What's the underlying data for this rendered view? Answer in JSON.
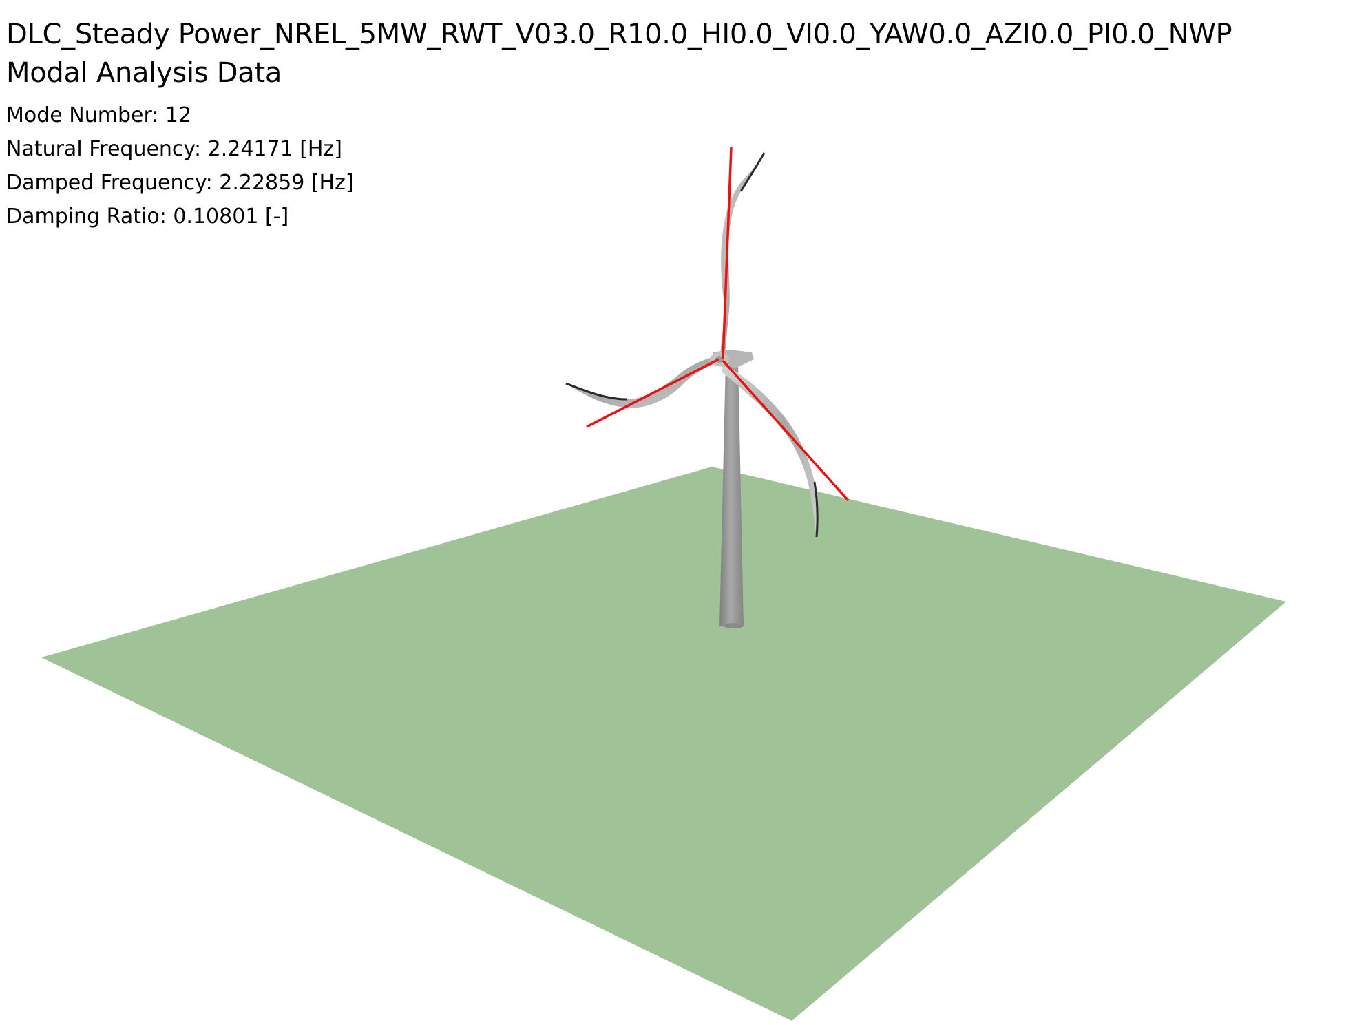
{
  "header": {
    "case_title": "DLC_Steady Power_NREL_5MW_RWT_V03.0_R10.0_HI0.0_VI0.0_YAW0.0_AZI0.0_PI0.0_NWP",
    "subtitle": "Modal Analysis Data"
  },
  "modal": {
    "mode_number": "Mode Number: 12",
    "natural_frequency": "Natural Frequency: 2.24171 [Hz]",
    "damped_frequency": "Damped Frequency: 2.22859 [Hz]",
    "damping_ratio": "Damping Ratio: 0.10801 [-]"
  },
  "colors": {
    "ground": "#9fc397",
    "tower": "#9a9a9a",
    "blade": "#bdbdbd",
    "blade_edge": "#2a2a2a",
    "reference_line": "#ee1111",
    "background": "#ffffff"
  }
}
